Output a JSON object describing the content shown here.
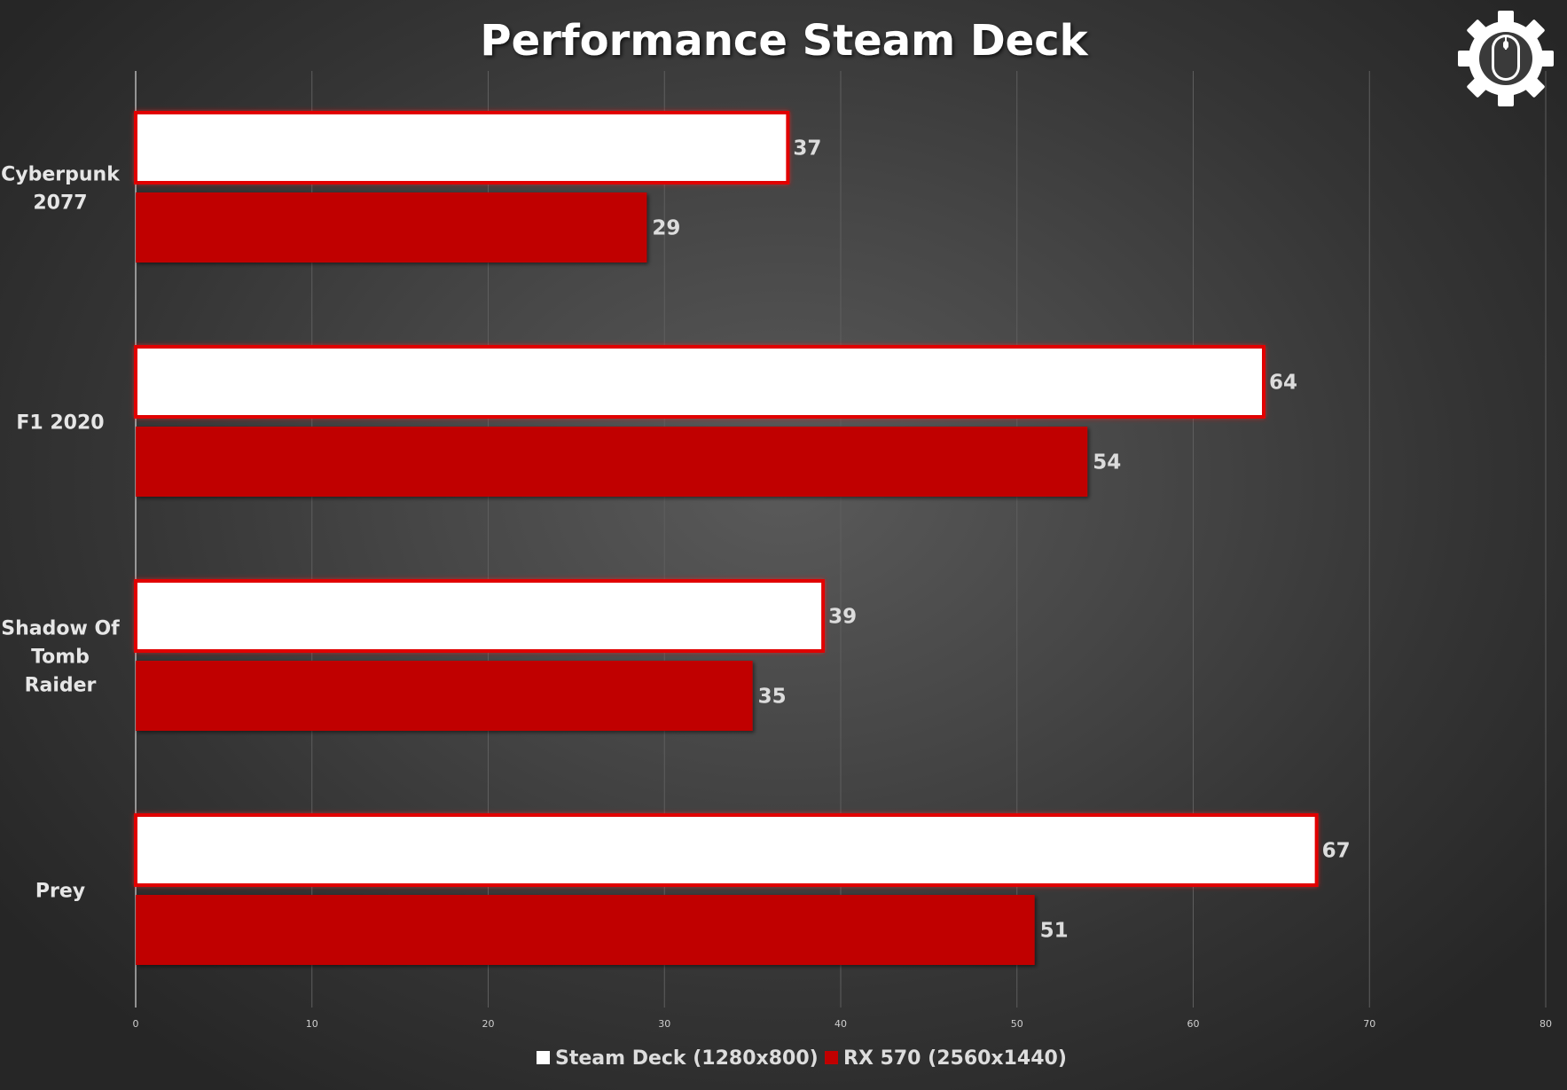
{
  "colors": {
    "series_1_fill": "#ffffff",
    "series_1_stroke": "#e10000",
    "series_2_fill": "#c00000",
    "gridline": "#5e5e5e",
    "text": "#e6e6e6"
  },
  "logo_icon": "gear-with-mouse-icon",
  "chart_data": {
    "type": "bar",
    "orientation": "horizontal",
    "title": "Performance Steam Deck",
    "xlabel": "",
    "ylabel": "",
    "categories": [
      "Cyberpunk 2077",
      "F1 2020",
      "Shadow Of Tomb Raider",
      "Prey"
    ],
    "series": [
      {
        "name": "Steam Deck (1280x800)",
        "values": [
          37,
          64,
          39,
          67
        ]
      },
      {
        "name": "RX 570 (2560x1440)",
        "values": [
          29,
          54,
          35,
          51
        ]
      }
    ],
    "xlim": [
      0,
      80
    ],
    "xticks": [
      0,
      10,
      20,
      30,
      40,
      50,
      60,
      70,
      80
    ],
    "grid": true,
    "legend_position": "bottom"
  }
}
